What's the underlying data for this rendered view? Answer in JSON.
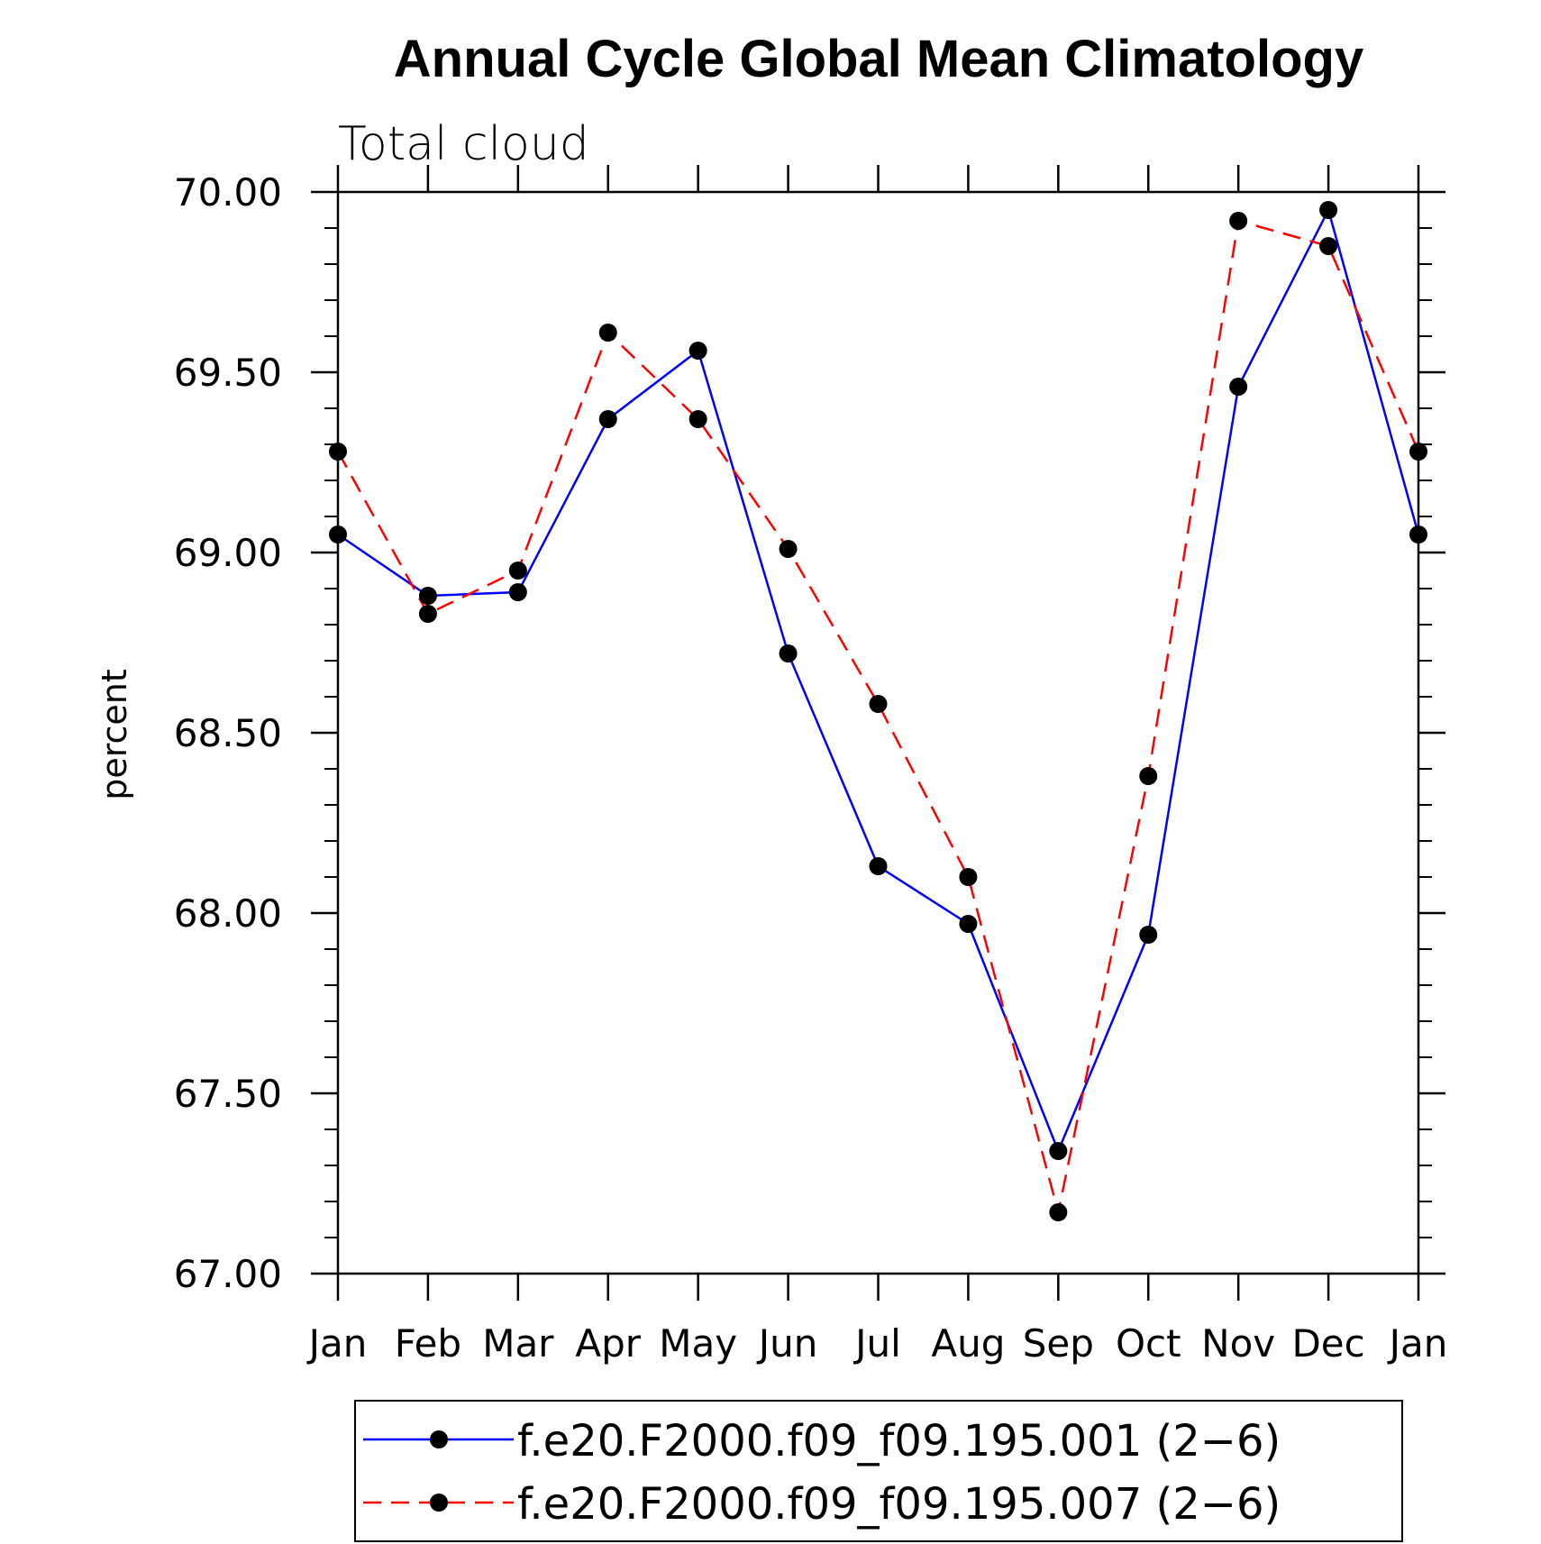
{
  "chart_data": {
    "type": "line",
    "title": "Annual Cycle Global Mean Climatology",
    "subtitle": "Total cloud",
    "xlabel": "",
    "ylabel": "percent",
    "categories": [
      "Jan",
      "Feb",
      "Mar",
      "Apr",
      "May",
      "Jun",
      "Jul",
      "Aug",
      "Sep",
      "Oct",
      "Nov",
      "Dec",
      "Jan"
    ],
    "ylim": [
      67.0,
      70.0
    ],
    "yticks": [
      "67.00",
      "67.50",
      "68.00",
      "68.50",
      "69.00",
      "69.50",
      "70.00"
    ],
    "ytick_values": [
      67.0,
      67.5,
      68.0,
      68.5,
      69.0,
      69.5,
      70.0
    ],
    "y_minor_step": 0.1,
    "grid": false,
    "legend_position": "bottom",
    "series": [
      {
        "name": "f.e20.F2000.f09_f09.195.001 (2−6)",
        "color": "#0000ff",
        "style": "solid",
        "marker": "filled-circle",
        "values": [
          69.05,
          68.88,
          68.89,
          69.37,
          69.56,
          68.72,
          68.13,
          67.97,
          67.34,
          67.94,
          69.46,
          69.95,
          69.05
        ]
      },
      {
        "name": "f.e20.F2000.f09_f09.195.007 (2−6)",
        "color": "#ff0000",
        "style": "dashed",
        "marker": "filled-circle",
        "values": [
          69.28,
          68.83,
          68.95,
          69.61,
          69.37,
          69.01,
          68.58,
          68.1,
          67.17,
          68.38,
          69.92,
          69.85,
          69.28
        ]
      }
    ]
  }
}
